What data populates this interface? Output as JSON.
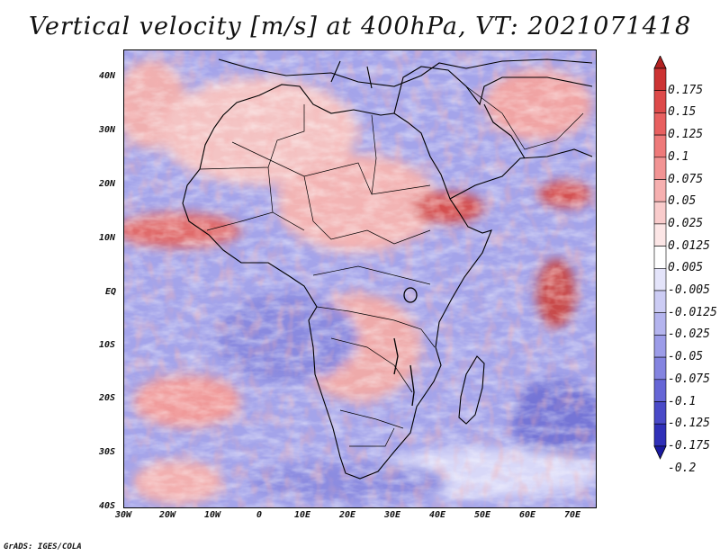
{
  "title": "Vertical velocity [m/s] at 400hPa, VT: 2021071418",
  "credit": "GrADS: IGES/COLA",
  "map": {
    "lat_labels": [
      "40N",
      "30N",
      "20N",
      "10N",
      "EQ",
      "10S",
      "20S",
      "30S",
      "40S"
    ],
    "lon_labels": [
      "30W",
      "20W",
      "10W",
      "0",
      "10E",
      "20E",
      "30E",
      "40E",
      "50E",
      "60E",
      "70E"
    ],
    "lat_range": [
      -40,
      45
    ],
    "lon_range": [
      -30,
      75
    ]
  },
  "colorbar": {
    "labels": [
      "0.175",
      "0.15",
      "0.125",
      "0.1",
      "0.075",
      "0.05",
      "0.025",
      "0.0125",
      "0.005",
      "-0.005",
      "-0.0125",
      "-0.025",
      "-0.05",
      "-0.075",
      "-0.1",
      "-0.125",
      "-0.175",
      "-0.2"
    ],
    "colors": [
      "#b22222",
      "#cc3333",
      "#dd4a4a",
      "#e86060",
      "#ee7a7a",
      "#f29494",
      "#f6b0b0",
      "#f9cccc",
      "#fce6e6",
      "#ffffff",
      "#e4e4fa",
      "#ccccf4",
      "#b4b4ee",
      "#9c9ce8",
      "#8484e0",
      "#6666d6",
      "#4a4ac8",
      "#3030b8",
      "#1a1aa0"
    ]
  }
}
